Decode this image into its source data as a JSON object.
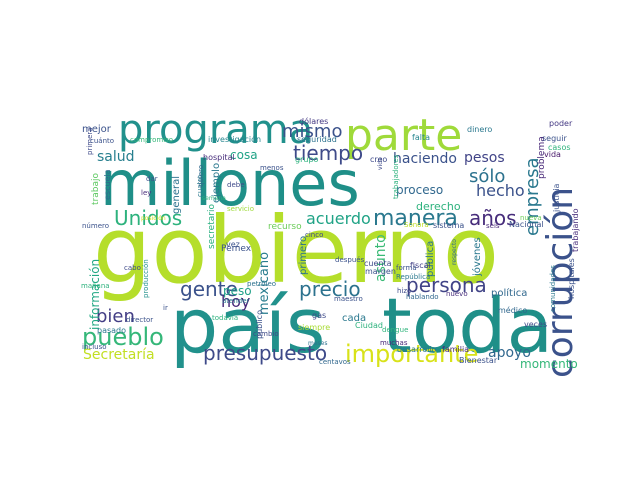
{
  "words": [
    {
      "text": "gobierno",
      "color": "#b5de2b"
    },
    {
      "text": "millones",
      "color": "#1f8f88"
    },
    {
      "text": "país",
      "color": "#21918c"
    },
    {
      "text": "toda",
      "color": "#1f8f88"
    },
    {
      "text": "parte",
      "color": "#9fda3a"
    },
    {
      "text": "programa",
      "color": "#21918c"
    },
    {
      "text": "corrupción",
      "color": "#3b528b"
    },
    {
      "text": "importante",
      "color": "#d8e219"
    },
    {
      "text": "presupuesto",
      "color": "#3e4a89"
    },
    {
      "text": "pueblo",
      "color": "#35b779"
    },
    {
      "text": "Unidos",
      "color": "#2db27d"
    },
    {
      "text": "mismo",
      "color": "#3b528b"
    },
    {
      "text": "tiempo",
      "color": "#3e4a89"
    },
    {
      "text": "manera",
      "color": "#2a788e"
    },
    {
      "text": "años",
      "color": "#472d7b"
    },
    {
      "text": "persona",
      "color": "#414487"
    },
    {
      "text": "precio",
      "color": "#2c728e"
    },
    {
      "text": "gente",
      "color": "#3b528b"
    },
    {
      "text": "bien",
      "color": "#433e85"
    },
    {
      "text": "empresa",
      "color": "#2a788e"
    },
    {
      "text": "acuerdo",
      "color": "#20a386"
    },
    {
      "text": "sólo",
      "color": "#2c728e"
    },
    {
      "text": "hecho",
      "color": "#3b528b"
    },
    {
      "text": "haciendo",
      "color": "#3b528b"
    },
    {
      "text": "pesos",
      "color": "#414487"
    },
    {
      "text": "apoyo",
      "color": "#31688e"
    },
    {
      "text": "salud",
      "color": "#277f8e"
    },
    {
      "text": "Secretaría",
      "color": "#c2df23"
    },
    {
      "text": "información",
      "color": "#22a884"
    },
    {
      "text": "mexicano",
      "color": "#287c8e"
    },
    {
      "text": "asunto",
      "color": "#3aba76"
    },
    {
      "text": "hoy",
      "color": "#482878"
    },
    {
      "text": "peso",
      "color": "#1fa088"
    },
    {
      "text": "mejor",
      "color": "#3b528b"
    },
    {
      "text": "momento",
      "color": "#35b779"
    },
    {
      "text": "proceso",
      "color": "#31688e"
    },
    {
      "text": "derecho",
      "color": "#2db27d"
    },
    {
      "text": "primero",
      "color": "#2c728e"
    },
    {
      "text": "pública",
      "color": "#2c728e"
    },
    {
      "text": "jóvenes",
      "color": "#2a788e"
    },
    {
      "text": "política",
      "color": "#31688e"
    },
    {
      "text": "cosa",
      "color": "#20a386"
    },
    {
      "text": "general",
      "color": "#2c728e"
    },
    {
      "text": "ejemplo",
      "color": "#2a788e"
    },
    {
      "text": "cada",
      "color": "#2a788e"
    },
    {
      "text": "secretario",
      "color": "#29af7f"
    },
    {
      "text": "recurso",
      "color": "#6ccd5a"
    },
    {
      "text": "problema",
      "color": "#482878"
    },
    {
      "text": "trabajo",
      "color": "#5ec962"
    },
    {
      "text": "escuela",
      "color": "#31688e"
    },
    {
      "text": "Pemex",
      "color": "#3b528b"
    },
    {
      "text": "dólares",
      "color": "#443983"
    },
    {
      "text": "cuenta",
      "color": "#3e4a89"
    },
    {
      "text": "hospital",
      "color": "#472d7b"
    },
    {
      "text": "compromiso",
      "color": "#35b779"
    },
    {
      "text": "investigación",
      "color": "#25858e"
    },
    {
      "text": "seguridad",
      "color": "#2c728e"
    },
    {
      "text": "margen",
      "color": "#3b528b"
    },
    {
      "text": "grupo",
      "color": "#2db27d"
    },
    {
      "text": "fiscal",
      "color": "#424086"
    },
    {
      "text": "falta",
      "color": "#25858e"
    },
    {
      "text": "dinero",
      "color": "#2a788e"
    },
    {
      "text": "poder",
      "color": "#443983"
    },
    {
      "text": "seguir",
      "color": "#3b528b"
    },
    {
      "text": "casos",
      "color": "#2fb47c"
    },
    {
      "text": "vida",
      "color": "#48186a"
    },
    {
      "text": "creo",
      "color": "#3e4a89"
    },
    {
      "text": "trabajadores",
      "color": "#2db27d"
    },
    {
      "text": "Nacional",
      "color": "#3b528b"
    },
    {
      "text": "sistema",
      "color": "#3b528b"
    },
    {
      "text": "seis",
      "color": "#482878"
    },
    {
      "text": "Sonora",
      "color": "#c0df25"
    },
    {
      "text": "nueva",
      "color": "#6ece58"
    },
    {
      "text": "justicia",
      "color": "#3b528b"
    },
    {
      "text": "trabajando",
      "color": "#472d7b"
    },
    {
      "text": "comunidades",
      "color": "#2a788e"
    },
    {
      "text": "hospitales",
      "color": "#3b528b"
    },
    {
      "text": "veces",
      "color": "#3e4a89"
    },
    {
      "text": "médico",
      "color": "#31688e"
    },
    {
      "text": "Bienestar",
      "color": "#3b528b"
    },
    {
      "text": "familia",
      "color": "#472d7b"
    },
    {
      "text": "desarrollo",
      "color": "#2a788e"
    },
    {
      "text": "centavos",
      "color": "#31688e"
    },
    {
      "text": "muchas",
      "color": "#482878"
    },
    {
      "text": "dengue",
      "color": "#2fb47c"
    },
    {
      "text": "Ciudad",
      "color": "#2db27d"
    },
    {
      "text": "siempre",
      "color": "#a8db34"
    },
    {
      "text": "gas",
      "color": "#3e4a89"
    },
    {
      "text": "maestro",
      "color": "#3b528b"
    },
    {
      "text": "hablando",
      "color": "#31688e"
    },
    {
      "text": "nuevo",
      "color": "#472d7b"
    },
    {
      "text": "forma",
      "color": "#3b528b"
    },
    {
      "text": "República",
      "color": "#2a788e"
    },
    {
      "text": "hizo",
      "color": "#3e4a89"
    },
    {
      "text": "respecto",
      "color": "#31688e"
    },
    {
      "text": "después",
      "color": "#3b528b"
    },
    {
      "text": "cinco",
      "color": "#3e4a89"
    },
    {
      "text": "vez",
      "color": "#3b528b"
    },
    {
      "text": "atender",
      "color": "#2a788e"
    },
    {
      "text": "petróleo",
      "color": "#2c728e"
    },
    {
      "text": "público",
      "color": "#3b528b"
    },
    {
      "text": "todavía",
      "color": "#2db27d"
    },
    {
      "text": "cambio",
      "color": "#3e4a89"
    },
    {
      "text": "meses",
      "color": "#2c728e"
    },
    {
      "text": "director",
      "color": "#3b528b"
    },
    {
      "text": "incluso",
      "color": "#3b528b"
    },
    {
      "text": "pasado",
      "color": "#2a788e"
    },
    {
      "text": "mañana",
      "color": "#2db27d"
    },
    {
      "text": "producción",
      "color": "#21918c"
    },
    {
      "text": "cabo",
      "color": "#3e4a89"
    },
    {
      "text": "número",
      "color": "#3b528b"
    },
    {
      "text": "ley",
      "color": "#472d7b"
    },
    {
      "text": "dar",
      "color": "#3b528b"
    },
    {
      "text": "cuatro",
      "color": "#2a788e"
    },
    {
      "text": "quiero",
      "color": "#31688e"
    },
    {
      "text": "primera",
      "color": "#3e4a89"
    },
    {
      "text": "cuánto",
      "color": "#3b528b"
    },
    {
      "text": "debe",
      "color": "#3e4a89"
    },
    {
      "text": "semana",
      "color": "#2db27d"
    },
    {
      "text": "menos",
      "color": "#3b528b"
    },
    {
      "text": "servicio",
      "color": "#9fda3a"
    },
    {
      "text": "posición",
      "color": "#c8e020"
    },
    {
      "text": "vida",
      "color": "#3e4a89"
    },
    {
      "text": "ir",
      "color": "#3b528b"
    }
  ]
}
